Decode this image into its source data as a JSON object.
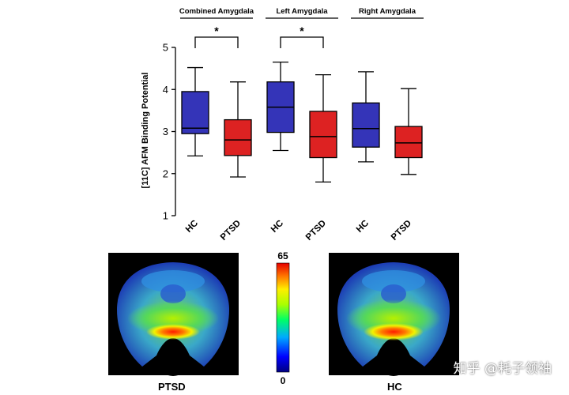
{
  "chart_data": {
    "type": "box",
    "ylabel": "[11C] AFM Binding Potential",
    "ylim": [
      1,
      5
    ],
    "yticks": [
      "1",
      "2",
      "3",
      "4",
      "5"
    ],
    "groups": [
      {
        "label": "Combined Amygdala",
        "significance": "*"
      },
      {
        "label": "Left Amygdala",
        "significance": "*"
      },
      {
        "label": "Right Amygdala",
        "significance": ""
      }
    ],
    "categories": [
      "HC",
      "PTSD",
      "HC",
      "PTSD",
      "HC",
      "PTSD"
    ],
    "boxes": [
      {
        "group": 0,
        "cat": "HC",
        "min": 2.42,
        "q1": 2.95,
        "median": 3.08,
        "q3": 3.95,
        "max": 4.52,
        "color": "#3434b8"
      },
      {
        "group": 0,
        "cat": "PTSD",
        "min": 1.92,
        "q1": 2.43,
        "median": 2.8,
        "q3": 3.28,
        "max": 4.18,
        "color": "#dd2222"
      },
      {
        "group": 1,
        "cat": "HC",
        "min": 2.55,
        "q1": 2.98,
        "median": 3.58,
        "q3": 4.18,
        "max": 4.65,
        "color": "#3434b8"
      },
      {
        "group": 1,
        "cat": "PTSD",
        "min": 1.8,
        "q1": 2.38,
        "median": 2.88,
        "q3": 3.48,
        "max": 4.35,
        "color": "#dd2222"
      },
      {
        "group": 2,
        "cat": "HC",
        "min": 2.28,
        "q1": 2.63,
        "median": 3.07,
        "q3": 3.68,
        "max": 4.42,
        "color": "#3434b8"
      },
      {
        "group": 2,
        "cat": "PTSD",
        "min": 1.98,
        "q1": 2.38,
        "median": 2.73,
        "q3": 3.12,
        "max": 4.02,
        "color": "#dd2222"
      }
    ]
  },
  "colorbar": {
    "max_label": "65",
    "min_label": "0"
  },
  "brain_panels": [
    {
      "label": "PTSD"
    },
    {
      "label": "HC"
    }
  ],
  "watermark": "知乎 @耗子领袖"
}
